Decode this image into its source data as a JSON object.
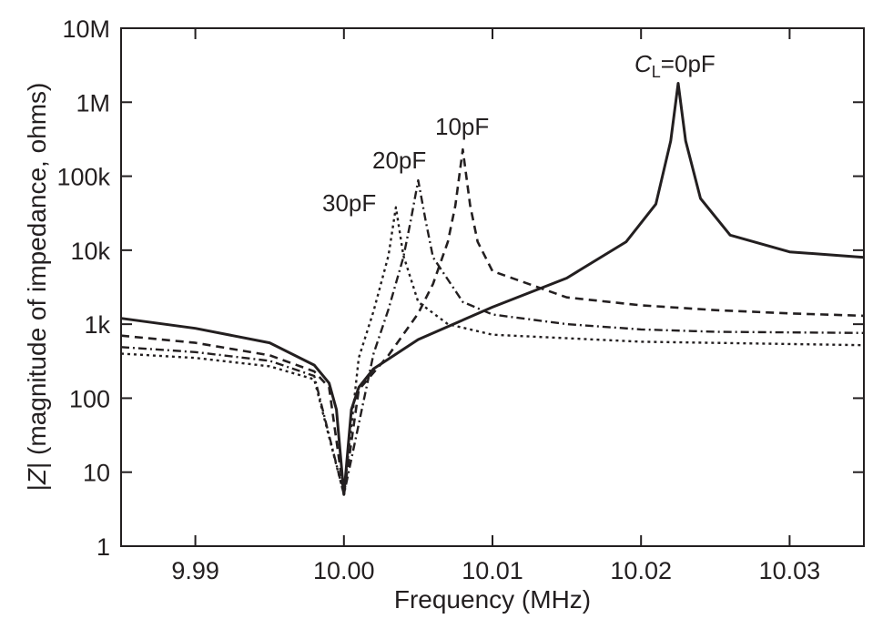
{
  "chart_data": {
    "type": "line",
    "title": "",
    "xlabel": "Frequency (MHz)",
    "ylabel": "|Z| (magnitude of impedance, ohms)",
    "ylabel_parts": {
      "bar_left": "|",
      "var": "Z",
      "bar_right": "|",
      "rest": " (magnitude of impedance, ohms)"
    },
    "xscale": "linear",
    "yscale": "log",
    "xlim": [
      9.985,
      10.035
    ],
    "ylim": [
      1,
      10000000
    ],
    "x_ticks": [
      9.99,
      10.0,
      10.01,
      10.02,
      10.03
    ],
    "x_tick_labels": [
      "9.99",
      "10.00",
      "10.01",
      "10.02",
      "10.03"
    ],
    "y_ticks": [
      1,
      10,
      100,
      1000,
      10000,
      100000,
      1000000,
      10000000
    ],
    "y_tick_labels": [
      "1",
      "10",
      "100",
      "1k",
      "10k",
      "100k",
      "1M",
      "10M"
    ],
    "grid": false,
    "legend": "none",
    "series": [
      {
        "name": "CL=0pF",
        "style": "solid",
        "x": [
          9.985,
          9.99,
          9.995,
          9.998,
          9.999,
          9.9995,
          10.0,
          10.0005,
          10.001,
          10.002,
          10.005,
          10.01,
          10.015,
          10.019,
          10.021,
          10.022,
          10.0225,
          10.023,
          10.024,
          10.026,
          10.03,
          10.035
        ],
        "y": [
          1200,
          880,
          560,
          280,
          160,
          70,
          5,
          70,
          140,
          250,
          620,
          1700,
          4200,
          13000,
          42000,
          300000,
          1800000,
          300000,
          50000,
          16000,
          9500,
          8000
        ]
      },
      {
        "name": "10pF",
        "style": "dashed",
        "x": [
          9.985,
          9.99,
          9.995,
          9.998,
          9.999,
          10.0,
          10.001,
          10.003,
          10.005,
          10.006,
          10.007,
          10.0075,
          10.008,
          10.0085,
          10.009,
          10.01,
          10.015,
          10.02,
          10.025,
          10.03,
          10.035
        ],
        "y": [
          700,
          560,
          380,
          230,
          140,
          5,
          130,
          380,
          1400,
          3500,
          13000,
          40000,
          230000,
          40000,
          13000,
          5200,
          2300,
          1800,
          1550,
          1400,
          1300
        ]
      },
      {
        "name": "20pF",
        "style": "dashdot",
        "x": [
          9.985,
          9.99,
          9.995,
          9.998,
          10.0,
          10.002,
          10.003,
          10.004,
          10.0045,
          10.005,
          10.0055,
          10.006,
          10.008,
          10.01,
          10.015,
          10.02,
          10.025,
          10.035
        ],
        "y": [
          490,
          420,
          320,
          200,
          5,
          400,
          1600,
          8000,
          25000,
          88000,
          25000,
          8000,
          2000,
          1350,
          1000,
          850,
          790,
          760
        ]
      },
      {
        "name": "30pF",
        "style": "dotted",
        "x": [
          9.985,
          9.99,
          9.995,
          9.998,
          10.0,
          10.001,
          10.002,
          10.003,
          10.0035,
          10.004,
          10.005,
          10.007,
          10.01,
          10.02,
          10.035
        ],
        "y": [
          400,
          350,
          270,
          180,
          5,
          350,
          1500,
          8500,
          38000,
          8500,
          2000,
          1000,
          720,
          580,
          520
        ]
      }
    ],
    "annotations": [
      {
        "text_main": "C",
        "text_sub": "L",
        "text_rest": "=0pF",
        "series": "CL=0pF"
      },
      {
        "text": "10pF",
        "series": "10pF"
      },
      {
        "text": "20pF",
        "series": "20pF"
      },
      {
        "text": "30pF",
        "series": "30pF"
      }
    ]
  }
}
